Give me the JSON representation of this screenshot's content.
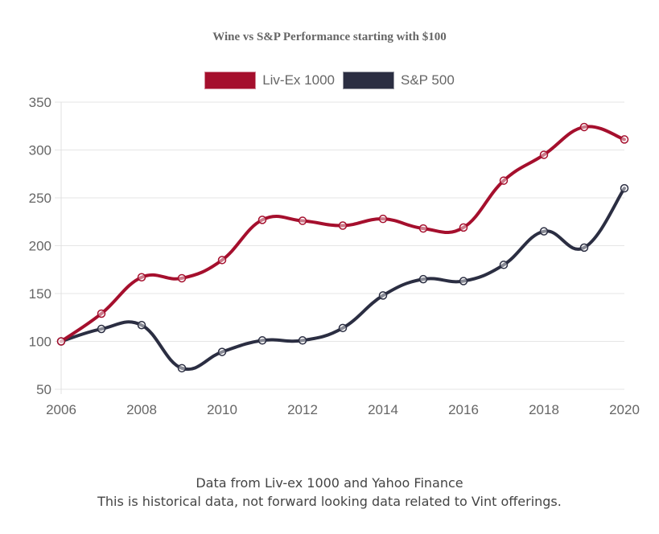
{
  "chart_data": {
    "type": "line",
    "title": "Wine vs S&P Performance starting with $100",
    "xlabel": "",
    "ylabel": "",
    "x": [
      2006,
      2007,
      2008,
      2009,
      2010,
      2011,
      2012,
      2013,
      2014,
      2015,
      2016,
      2017,
      2018,
      2019,
      2020
    ],
    "x_tick_labels": [
      "2006",
      "2008",
      "2010",
      "2012",
      "2014",
      "2016",
      "2018",
      "2020"
    ],
    "y_tick_labels": [
      "50",
      "100",
      "150",
      "200",
      "250",
      "300",
      "350"
    ],
    "ylim": [
      50,
      350
    ],
    "xlim": [
      2006,
      2020
    ],
    "grid": true,
    "legend_position": "top",
    "series": [
      {
        "name": "Liv-Ex 1000",
        "color": "#a50f2d",
        "values": [
          100,
          129,
          167,
          166,
          185,
          227,
          226,
          221,
          228,
          218,
          219,
          268,
          295,
          324,
          311
        ]
      },
      {
        "name": "S&P 500",
        "color": "#2b2e42",
        "values": [
          100,
          113,
          117,
          72,
          89,
          101,
          101,
          114,
          148,
          165,
          163,
          180,
          215,
          198,
          260
        ]
      }
    ]
  },
  "footer": {
    "line1": "Data from Liv-ex 1000 and Yahoo Finance",
    "line2": "This is historical data, not forward looking data related to Vint offerings."
  }
}
